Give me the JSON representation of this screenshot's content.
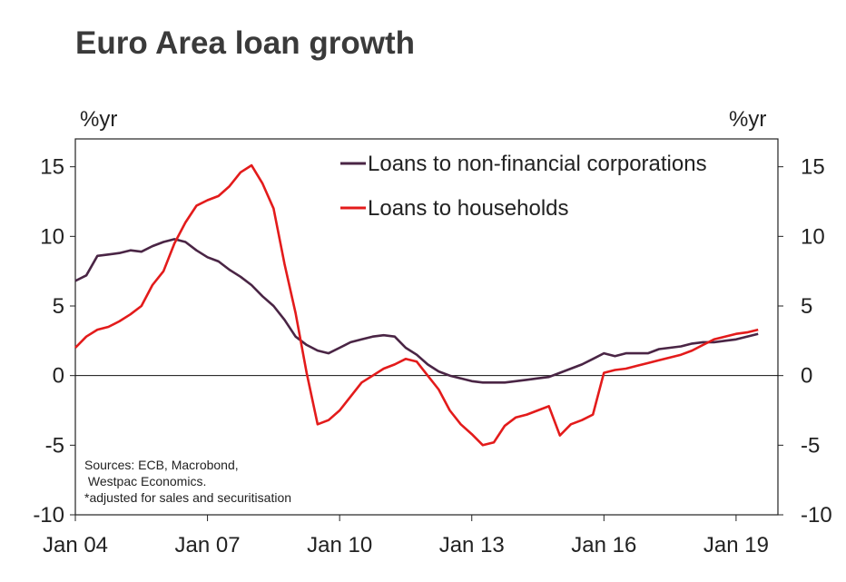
{
  "chart_data": {
    "type": "line",
    "title": "Euro Area loan growth",
    "y_unit_left": "%yr",
    "y_unit_right": "%yr",
    "ylim": [
      -10,
      17
    ],
    "yticks": [
      15,
      10,
      5,
      0,
      -5,
      -10
    ],
    "ytick_labels": [
      "15",
      "10",
      "5",
      "0",
      "-5",
      "-10"
    ],
    "xlim": [
      2004.0,
      2019.95
    ],
    "xticks": [
      2004,
      2007,
      2010,
      2013,
      2016,
      2019
    ],
    "xtick_labels": [
      "Jan 04",
      "Jan 07",
      "Jan 10",
      "Jan 13",
      "Jan 16",
      "Jan 19"
    ],
    "grid": false,
    "legend_position": "top-right",
    "source_lines": [
      "Sources: ECB, Macrobond,",
      " Westpac Economics.",
      "*adjusted for sales and securitisation"
    ],
    "series": [
      {
        "name": "Loans to non-financial corporations",
        "color": "#4a2545",
        "x": [
          2004.0,
          2004.25,
          2004.5,
          2004.75,
          2005.0,
          2005.25,
          2005.5,
          2005.75,
          2006.0,
          2006.25,
          2006.5,
          2006.75,
          2007.0,
          2007.25,
          2007.5,
          2007.75,
          2008.0,
          2008.25,
          2008.5,
          2008.75,
          2009.0,
          2009.25,
          2009.5,
          2009.75,
          2010.0,
          2010.25,
          2010.5,
          2010.75,
          2011.0,
          2011.25,
          2011.5,
          2011.75,
          2012.0,
          2012.25,
          2012.5,
          2012.75,
          2013.0,
          2013.25,
          2013.5,
          2013.75,
          2014.0,
          2014.25,
          2014.5,
          2014.75,
          2015.0,
          2015.25,
          2015.5,
          2015.75,
          2016.0,
          2016.25,
          2016.5,
          2016.75,
          2017.0,
          2017.25,
          2017.5,
          2017.75,
          2018.0,
          2018.25,
          2018.5,
          2018.75,
          2019.0,
          2019.25,
          2019.5
        ],
        "values": [
          6.8,
          7.2,
          8.6,
          8.7,
          8.8,
          9.0,
          8.9,
          9.3,
          9.6,
          9.8,
          9.6,
          9.0,
          8.5,
          8.2,
          7.6,
          7.1,
          6.5,
          5.7,
          5.0,
          4.0,
          2.8,
          2.2,
          1.8,
          1.6,
          2.0,
          2.4,
          2.6,
          2.8,
          2.9,
          2.8,
          2.0,
          1.5,
          0.8,
          0.3,
          0.0,
          -0.2,
          -0.4,
          -0.5,
          -0.5,
          -0.5,
          -0.4,
          -0.3,
          -0.2,
          -0.1,
          0.2,
          0.5,
          0.8,
          1.2,
          1.6,
          1.4,
          1.6,
          1.6,
          1.6,
          1.9,
          2.0,
          2.1,
          2.3,
          2.4,
          2.4,
          2.5,
          2.6,
          2.8,
          3.0
        ]
      },
      {
        "name": "Loans to households",
        "color": "#e31b1b",
        "x": [
          2004.0,
          2004.25,
          2004.5,
          2004.75,
          2005.0,
          2005.25,
          2005.5,
          2005.75,
          2006.0,
          2006.25,
          2006.5,
          2006.75,
          2007.0,
          2007.25,
          2007.5,
          2007.75,
          2008.0,
          2008.25,
          2008.5,
          2008.75,
          2009.0,
          2009.25,
          2009.5,
          2009.75,
          2010.0,
          2010.25,
          2010.5,
          2010.75,
          2011.0,
          2011.25,
          2011.5,
          2011.75,
          2012.0,
          2012.25,
          2012.5,
          2012.75,
          2013.0,
          2013.25,
          2013.5,
          2013.75,
          2014.0,
          2014.25,
          2014.5,
          2014.75,
          2015.0,
          2015.25,
          2015.5,
          2015.75,
          2016.0,
          2016.25,
          2016.5,
          2016.75,
          2017.0,
          2017.25,
          2017.5,
          2017.75,
          2018.0,
          2018.25,
          2018.5,
          2018.75,
          2019.0,
          2019.25,
          2019.5
        ],
        "values": [
          2.0,
          2.8,
          3.3,
          3.5,
          3.9,
          4.4,
          5.0,
          6.5,
          7.5,
          9.5,
          11.0,
          12.2,
          12.6,
          12.9,
          13.6,
          14.6,
          15.1,
          13.8,
          12.0,
          8.0,
          4.5,
          0.2,
          -3.5,
          -3.2,
          -2.5,
          -1.5,
          -0.5,
          0.0,
          0.5,
          0.8,
          1.2,
          1.0,
          0.0,
          -1.0,
          -2.5,
          -3.5,
          -4.2,
          -5.0,
          -4.8,
          -3.6,
          -3.0,
          -2.8,
          -2.5,
          -2.2,
          -4.3,
          -3.5,
          -3.2,
          -2.8,
          0.2,
          0.4,
          0.5,
          0.7,
          0.9,
          1.1,
          1.3,
          1.5,
          1.8,
          2.2,
          2.6,
          2.8,
          3.0,
          3.1,
          3.3
        ]
      }
    ]
  }
}
